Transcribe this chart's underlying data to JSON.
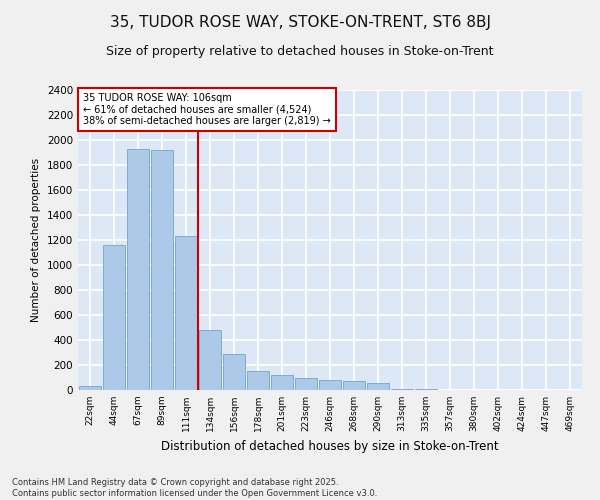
{
  "title1": "35, TUDOR ROSE WAY, STOKE-ON-TRENT, ST6 8BJ",
  "title2": "Size of property relative to detached houses in Stoke-on-Trent",
  "xlabel": "Distribution of detached houses by size in Stoke-on-Trent",
  "ylabel": "Number of detached properties",
  "bins": [
    "22sqm",
    "44sqm",
    "67sqm",
    "89sqm",
    "111sqm",
    "134sqm",
    "156sqm",
    "178sqm",
    "201sqm",
    "223sqm",
    "246sqm",
    "268sqm",
    "290sqm",
    "313sqm",
    "335sqm",
    "357sqm",
    "380sqm",
    "402sqm",
    "424sqm",
    "447sqm",
    "469sqm"
  ],
  "values": [
    30,
    1160,
    1930,
    1920,
    1230,
    480,
    290,
    155,
    120,
    100,
    80,
    70,
    60,
    10,
    5,
    2,
    2,
    1,
    1,
    1,
    1
  ],
  "bar_color": "#adc9e8",
  "bar_edge_color": "#6699cc",
  "vline_color": "#cc0000",
  "annotation_text": "35 TUDOR ROSE WAY: 106sqm\n← 61% of detached houses are smaller (4,524)\n38% of semi-detached houses are larger (2,819) →",
  "annotation_box_color": "#ffffff",
  "annotation_edge_color": "#cc0000",
  "ylim": [
    0,
    2400
  ],
  "yticks": [
    0,
    200,
    400,
    600,
    800,
    1000,
    1200,
    1400,
    1600,
    1800,
    2000,
    2200,
    2400
  ],
  "bg_color": "#dce8f5",
  "grid_color": "#ffffff",
  "fig_bg_color": "#f0f0f0",
  "footer1": "Contains HM Land Registry data © Crown copyright and database right 2025.",
  "footer2": "Contains public sector information licensed under the Open Government Licence v3.0.",
  "title1_fontsize": 11,
  "title2_fontsize": 9
}
